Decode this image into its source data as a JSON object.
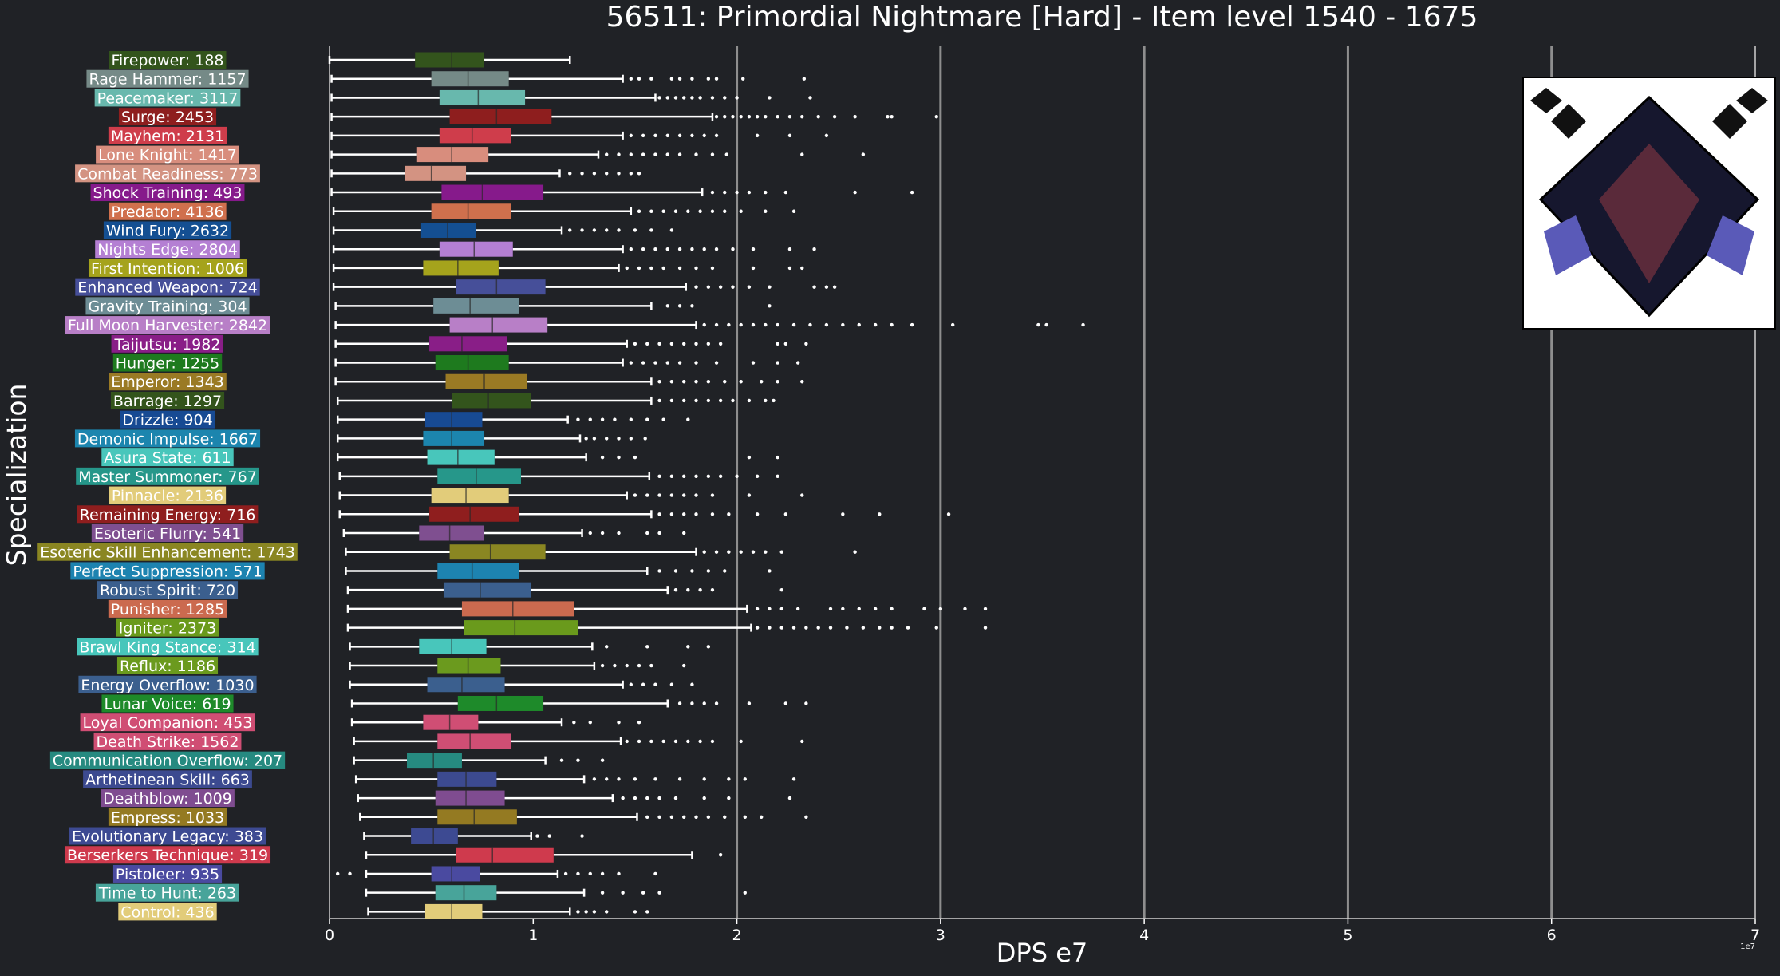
{
  "chart_data": {
    "type": "boxplot",
    "orientation": "horizontal",
    "title": "56511: Primordial Nightmare [Hard] - Item level 1540 - 1675",
    "xlabel": "DPS e7",
    "ylabel": "Specialization",
    "x_offset_label": "1e7",
    "xlim": [
      0,
      7
    ],
    "xticks": [
      0,
      1,
      2,
      3,
      4,
      5,
      6,
      7
    ],
    "grid": "vertical lines at x = 2, 3, 4, 5, 6",
    "colors": {
      "background": "#202226",
      "text": "#ffffff",
      "grid": "#8e8e8e",
      "whisker": "#ffffff"
    },
    "image_inset": {
      "icon": "primordial-nightmare-raid-icon",
      "placement": "top-right"
    },
    "series": [
      {
        "name": "Firepower",
        "label": "Firepower: 188",
        "count": 188,
        "color": "#33541c",
        "whislo": 0.0,
        "q1": 0.42,
        "median": 0.6,
        "q3": 0.76,
        "whishi": 1.18,
        "fliers": []
      },
      {
        "name": "Rage Hammer",
        "label": "Rage Hammer: 1157",
        "count": 1157,
        "color": "#758a87",
        "whislo": 0.01,
        "q1": 0.5,
        "median": 0.68,
        "q3": 0.88,
        "whishi": 1.44,
        "fliers": [
          1.48,
          1.52,
          1.58,
          1.68,
          1.72,
          1.78,
          1.86,
          1.9,
          2.03,
          2.33
        ]
      },
      {
        "name": "Peacemaker",
        "label": "Peacemaker: 3117",
        "count": 3117,
        "color": "#68b8ad",
        "whislo": 0.01,
        "q1": 0.54,
        "median": 0.73,
        "q3": 0.96,
        "whishi": 1.6,
        "fliers": [
          1.62,
          1.66,
          1.7,
          1.74,
          1.78,
          1.82,
          1.88,
          1.94,
          2.0,
          2.16,
          2.36
        ]
      },
      {
        "name": "Surge",
        "label": "Surge: 2453",
        "count": 2453,
        "color": "#8e1e1e",
        "whislo": 0.01,
        "q1": 0.59,
        "median": 0.82,
        "q3": 1.09,
        "whishi": 1.88,
        "fliers": [
          1.9,
          1.94,
          1.98,
          2.02,
          2.06,
          2.1,
          2.14,
          2.2,
          2.26,
          2.32,
          2.4,
          2.48,
          2.58,
          2.74,
          2.76,
          2.98
        ]
      },
      {
        "name": "Mayhem",
        "label": "Mayhem: 2131",
        "count": 2131,
        "color": "#cf3d4b",
        "whislo": 0.01,
        "q1": 0.54,
        "median": 0.7,
        "q3": 0.89,
        "whishi": 1.44,
        "fliers": [
          1.48,
          1.54,
          1.6,
          1.66,
          1.72,
          1.78,
          1.84,
          1.9,
          2.1,
          2.26,
          2.44
        ]
      },
      {
        "name": "Lone Knight",
        "label": "Lone Knight: 1417",
        "count": 1417,
        "color": "#d88d7d",
        "whislo": 0.01,
        "q1": 0.43,
        "median": 0.6,
        "q3": 0.78,
        "whishi": 1.32,
        "fliers": [
          1.36,
          1.42,
          1.48,
          1.54,
          1.6,
          1.66,
          1.72,
          1.8,
          1.88,
          1.95,
          2.32,
          2.62
        ]
      },
      {
        "name": "Combat Readiness",
        "label": "Combat Readiness: 773",
        "count": 773,
        "color": "#d39382",
        "whislo": 0.01,
        "q1": 0.37,
        "median": 0.5,
        "q3": 0.67,
        "whishi": 1.13,
        "fliers": [
          1.18,
          1.24,
          1.3,
          1.36,
          1.42,
          1.48,
          1.52
        ]
      },
      {
        "name": "Shock Training",
        "label": "Shock Training: 493",
        "count": 493,
        "color": "#861a8b",
        "whislo": 0.01,
        "q1": 0.55,
        "median": 0.75,
        "q3": 1.05,
        "whishi": 1.83,
        "fliers": [
          1.88,
          1.94,
          2.0,
          2.06,
          2.14,
          2.24,
          2.58,
          2.86
        ]
      },
      {
        "name": "Predator",
        "label": "Predator: 4136",
        "count": 4136,
        "color": "#d0704d",
        "whislo": 0.02,
        "q1": 0.5,
        "median": 0.68,
        "q3": 0.89,
        "whishi": 1.48,
        "fliers": [
          1.52,
          1.58,
          1.64,
          1.7,
          1.76,
          1.82,
          1.88,
          1.94,
          2.02,
          2.14,
          2.28
        ]
      },
      {
        "name": "Wind Fury",
        "label": "Wind Fury: 2632",
        "count": 2632,
        "color": "#144f92",
        "whislo": 0.02,
        "q1": 0.45,
        "median": 0.58,
        "q3": 0.72,
        "whishi": 1.14,
        "fliers": [
          1.18,
          1.24,
          1.3,
          1.36,
          1.42,
          1.5,
          1.58,
          1.68
        ]
      },
      {
        "name": "Nights Edge",
        "label": "Nights Edge: 2804",
        "count": 2804,
        "color": "#b47fd3",
        "whislo": 0.02,
        "q1": 0.54,
        "median": 0.71,
        "q3": 0.9,
        "whishi": 1.44,
        "fliers": [
          1.48,
          1.54,
          1.6,
          1.66,
          1.72,
          1.78,
          1.84,
          1.9,
          1.98,
          2.08,
          2.26,
          2.38
        ]
      },
      {
        "name": "First Intention",
        "label": "First Intention: 1006",
        "count": 1006,
        "color": "#a5a31c",
        "whislo": 0.02,
        "q1": 0.46,
        "median": 0.63,
        "q3": 0.83,
        "whishi": 1.42,
        "fliers": [
          1.46,
          1.52,
          1.58,
          1.64,
          1.72,
          1.8,
          1.88,
          2.08,
          2.26,
          2.32
        ]
      },
      {
        "name": "Enhanced Weapon",
        "label": "Enhanced Weapon: 724",
        "count": 724,
        "color": "#464f99",
        "whislo": 0.02,
        "q1": 0.62,
        "median": 0.82,
        "q3": 1.06,
        "whishi": 1.75,
        "fliers": [
          1.8,
          1.86,
          1.92,
          1.98,
          2.06,
          2.16,
          2.38,
          2.44,
          2.48
        ]
      },
      {
        "name": "Gravity Training",
        "label": "Gravity Training: 304",
        "count": 304,
        "color": "#6d8d95",
        "whislo": 0.03,
        "q1": 0.51,
        "median": 0.69,
        "q3": 0.93,
        "whishi": 1.58,
        "fliers": [
          1.66,
          1.72,
          1.78,
          2.16
        ]
      },
      {
        "name": "Full Moon Harvester",
        "label": "Full Moon Harvester: 2842",
        "count": 2842,
        "color": "#b87fc7",
        "whislo": 0.03,
        "q1": 0.59,
        "median": 0.8,
        "q3": 1.07,
        "whishi": 1.8,
        "fliers": [
          1.84,
          1.9,
          1.96,
          2.02,
          2.08,
          2.14,
          2.2,
          2.28,
          2.36,
          2.44,
          2.52,
          2.6,
          2.68,
          2.76,
          2.86,
          3.06,
          3.48,
          3.52,
          3.7
        ]
      },
      {
        "name": "Taijutsu",
        "label": "Taijutsu: 1982",
        "count": 1982,
        "color": "#891e87",
        "whislo": 0.03,
        "q1": 0.49,
        "median": 0.65,
        "q3": 0.87,
        "whishi": 1.46,
        "fliers": [
          1.5,
          1.56,
          1.62,
          1.68,
          1.74,
          1.8,
          1.86,
          1.92,
          2.2,
          2.24,
          2.34
        ]
      },
      {
        "name": "Hunger",
        "label": "Hunger: 1255",
        "count": 1255,
        "color": "#1e7a1e",
        "whislo": 0.03,
        "q1": 0.52,
        "median": 0.68,
        "q3": 0.88,
        "whishi": 1.44,
        "fliers": [
          1.48,
          1.54,
          1.6,
          1.66,
          1.72,
          1.8,
          1.9,
          2.08,
          2.2,
          2.3
        ]
      },
      {
        "name": "Emperor",
        "label": "Emperor: 1343",
        "count": 1343,
        "color": "#9a7a24",
        "whislo": 0.03,
        "q1": 0.57,
        "median": 0.76,
        "q3": 0.97,
        "whishi": 1.58,
        "fliers": [
          1.62,
          1.68,
          1.74,
          1.8,
          1.86,
          1.94,
          2.02,
          2.12,
          2.2,
          2.32
        ]
      },
      {
        "name": "Barrage",
        "label": "Barrage: 1297",
        "count": 1297,
        "color": "#33541c",
        "whislo": 0.04,
        "q1": 0.6,
        "median": 0.78,
        "q3": 0.99,
        "whishi": 1.58,
        "fliers": [
          1.62,
          1.68,
          1.74,
          1.8,
          1.86,
          1.92,
          1.98,
          2.06,
          2.14,
          2.18
        ]
      },
      {
        "name": "Drizzle",
        "label": "Drizzle: 904",
        "count": 904,
        "color": "#174a93",
        "whislo": 0.04,
        "q1": 0.47,
        "median": 0.6,
        "q3": 0.75,
        "whishi": 1.17,
        "fliers": [
          1.22,
          1.28,
          1.34,
          1.4,
          1.48,
          1.56,
          1.64,
          1.76
        ]
      },
      {
        "name": "Demonic Impulse",
        "label": "Demonic Impulse: 1667",
        "count": 1667,
        "color": "#1c85ae",
        "whislo": 0.04,
        "q1": 0.46,
        "median": 0.6,
        "q3": 0.76,
        "whishi": 1.23,
        "fliers": [
          1.26,
          1.3,
          1.36,
          1.42,
          1.48,
          1.55
        ]
      },
      {
        "name": "Asura State",
        "label": "Asura State: 611",
        "count": 611,
        "color": "#48c6bb",
        "whislo": 0.04,
        "q1": 0.48,
        "median": 0.63,
        "q3": 0.81,
        "whishi": 1.26,
        "fliers": [
          1.34,
          1.42,
          1.5,
          2.06,
          2.2
        ]
      },
      {
        "name": "Master Summoner",
        "label": "Master Summoner: 767",
        "count": 767,
        "color": "#26978a",
        "whislo": 0.05,
        "q1": 0.53,
        "median": 0.72,
        "q3": 0.94,
        "whishi": 1.57,
        "fliers": [
          1.62,
          1.68,
          1.74,
          1.8,
          1.86,
          1.92,
          2.0,
          2.1,
          2.2
        ]
      },
      {
        "name": "Pinnacle",
        "label": "Pinnacle: 2136",
        "count": 2136,
        "color": "#e2cc7a",
        "whislo": 0.05,
        "q1": 0.5,
        "median": 0.67,
        "q3": 0.88,
        "whishi": 1.46,
        "fliers": [
          1.5,
          1.56,
          1.62,
          1.68,
          1.74,
          1.8,
          1.88,
          2.06,
          2.32
        ]
      },
      {
        "name": "Remaining Energy",
        "label": "Remaining Energy: 716",
        "count": 716,
        "color": "#8f1e1e",
        "whislo": 0.05,
        "q1": 0.49,
        "median": 0.69,
        "q3": 0.93,
        "whishi": 1.58,
        "fliers": [
          1.62,
          1.68,
          1.74,
          1.8,
          1.88,
          1.96,
          2.1,
          2.24,
          2.52,
          2.7,
          3.04
        ]
      },
      {
        "name": "Esoteric Flurry",
        "label": "Esoteric Flurry: 541",
        "count": 541,
        "color": "#7f4f90",
        "whislo": 0.07,
        "q1": 0.44,
        "median": 0.59,
        "q3": 0.76,
        "whishi": 1.24,
        "fliers": [
          1.28,
          1.34,
          1.42,
          1.56,
          1.62,
          1.74
        ]
      },
      {
        "name": "Esoteric Skill Enhancement",
        "label": "Esoteric Skill Enhancement: 1743",
        "count": 1743,
        "color": "#8a8622",
        "whislo": 0.08,
        "q1": 0.59,
        "median": 0.79,
        "q3": 1.06,
        "whishi": 1.8,
        "fliers": [
          1.84,
          1.9,
          1.96,
          2.02,
          2.08,
          2.14,
          2.22,
          2.58
        ]
      },
      {
        "name": "Perfect Suppression",
        "label": "Perfect Suppression: 571",
        "count": 571,
        "color": "#1d83b0",
        "whislo": 0.08,
        "q1": 0.53,
        "median": 0.7,
        "q3": 0.93,
        "whishi": 1.56,
        "fliers": [
          1.62,
          1.7,
          1.78,
          1.86,
          1.94,
          2.16
        ]
      },
      {
        "name": "Robust Spirit",
        "label": "Robust Spirit: 720",
        "count": 720,
        "color": "#3b5f8e",
        "whislo": 0.09,
        "q1": 0.56,
        "median": 0.74,
        "q3": 0.99,
        "whishi": 1.66,
        "fliers": [
          1.7,
          1.76,
          1.82,
          1.88,
          2.22
        ]
      },
      {
        "name": "Punisher",
        "label": "Punisher: 1285",
        "count": 1285,
        "color": "#cb6a4f",
        "whislo": 0.09,
        "q1": 0.65,
        "median": 0.9,
        "q3": 1.2,
        "whishi": 2.05,
        "fliers": [
          2.1,
          2.16,
          2.22,
          2.3,
          2.46,
          2.52,
          2.6,
          2.68,
          2.76,
          2.92,
          3.0,
          3.12,
          3.22
        ]
      },
      {
        "name": "Igniter",
        "label": "Igniter: 2373",
        "count": 2373,
        "color": "#6a9a1c",
        "whislo": 0.09,
        "q1": 0.66,
        "median": 0.91,
        "q3": 1.22,
        "whishi": 2.07,
        "fliers": [
          2.1,
          2.16,
          2.22,
          2.28,
          2.34,
          2.4,
          2.46,
          2.54,
          2.62,
          2.7,
          2.76,
          2.84,
          2.98,
          3.22
        ]
      },
      {
        "name": "Brawl King Stance",
        "label": "Brawl King Stance: 314",
        "count": 314,
        "color": "#48c6bb",
        "whislo": 0.1,
        "q1": 0.44,
        "median": 0.6,
        "q3": 0.77,
        "whishi": 1.29,
        "fliers": [
          1.36,
          1.56,
          1.76,
          1.86
        ]
      },
      {
        "name": "Reflux",
        "label": "Reflux: 1186",
        "count": 1186,
        "color": "#6b9a1e",
        "whislo": 0.1,
        "q1": 0.53,
        "median": 0.68,
        "q3": 0.84,
        "whishi": 1.3,
        "fliers": [
          1.34,
          1.4,
          1.46,
          1.52,
          1.58,
          1.74
        ]
      },
      {
        "name": "Energy Overflow",
        "label": "Energy Overflow: 1030",
        "count": 1030,
        "color": "#3b5f8e",
        "whislo": 0.1,
        "q1": 0.48,
        "median": 0.65,
        "q3": 0.86,
        "whishi": 1.44,
        "fliers": [
          1.48,
          1.54,
          1.6,
          1.68,
          1.78
        ]
      },
      {
        "name": "Lunar Voice",
        "label": "Lunar Voice: 619",
        "count": 619,
        "color": "#1e8a2a",
        "whislo": 0.11,
        "q1": 0.63,
        "median": 0.82,
        "q3": 1.05,
        "whishi": 1.66,
        "fliers": [
          1.72,
          1.78,
          1.84,
          1.9,
          2.06,
          2.24,
          2.34
        ]
      },
      {
        "name": "Loyal Companion",
        "label": "Loyal Companion: 453",
        "count": 453,
        "color": "#d04e74",
        "whislo": 0.11,
        "q1": 0.46,
        "median": 0.59,
        "q3": 0.73,
        "whishi": 1.14,
        "fliers": [
          1.2,
          1.28,
          1.42,
          1.52
        ]
      },
      {
        "name": "Death Strike",
        "label": "Death Strike: 1562",
        "count": 1562,
        "color": "#d04e74",
        "whislo": 0.12,
        "q1": 0.53,
        "median": 0.69,
        "q3": 0.89,
        "whishi": 1.43,
        "fliers": [
          1.46,
          1.52,
          1.58,
          1.64,
          1.7,
          1.76,
          1.82,
          1.88,
          2.02,
          2.32
        ]
      },
      {
        "name": "Communication Overflow",
        "label": "Communication Overflow: 207",
        "count": 207,
        "color": "#268a80",
        "whislo": 0.12,
        "q1": 0.38,
        "median": 0.51,
        "q3": 0.65,
        "whishi": 1.06,
        "fliers": [
          1.14,
          1.22,
          1.34
        ]
      },
      {
        "name": "Arthetinean Skill",
        "label": "Arthetinean Skill: 663",
        "count": 663,
        "color": "#3c4a90",
        "whislo": 0.13,
        "q1": 0.53,
        "median": 0.67,
        "q3": 0.82,
        "whishi": 1.25,
        "fliers": [
          1.3,
          1.36,
          1.42,
          1.5,
          1.6,
          1.72,
          1.84,
          1.96,
          2.04,
          2.28
        ]
      },
      {
        "name": "Deathblow",
        "label": "Deathblow: 1009",
        "count": 1009,
        "color": "#7f4c90",
        "whislo": 0.14,
        "q1": 0.52,
        "median": 0.67,
        "q3": 0.86,
        "whishi": 1.39,
        "fliers": [
          1.44,
          1.5,
          1.56,
          1.62,
          1.7,
          1.84,
          1.96,
          2.26
        ]
      },
      {
        "name": "Empress",
        "label": "Empress: 1033",
        "count": 1033,
        "color": "#947a22",
        "whislo": 0.15,
        "q1": 0.53,
        "median": 0.71,
        "q3": 0.92,
        "whishi": 1.51,
        "fliers": [
          1.56,
          1.62,
          1.68,
          1.74,
          1.8,
          1.86,
          1.94,
          2.04,
          2.12,
          2.34
        ]
      },
      {
        "name": "Evolutionary Legacy",
        "label": "Evolutionary Legacy: 383",
        "count": 383,
        "color": "#3d4a92",
        "whislo": 0.17,
        "q1": 0.4,
        "median": 0.51,
        "q3": 0.63,
        "whishi": 0.99,
        "fliers": [
          1.02,
          1.08,
          1.24
        ]
      },
      {
        "name": "Berserkers Technique",
        "label": "Berserkers Technique: 319",
        "count": 319,
        "color": "#cf3a4d",
        "whislo": 0.18,
        "q1": 0.62,
        "median": 0.8,
        "q3": 1.1,
        "whishi": 1.78,
        "fliers": [
          1.92
        ]
      },
      {
        "name": "Pistoleer",
        "label": "Pistoleer: 935",
        "count": 935,
        "color": "#4a4aa0",
        "whislo": 0.18,
        "q1": 0.5,
        "median": 0.6,
        "q3": 0.74,
        "whishi": 1.12,
        "fliers": [
          0.04,
          0.1,
          1.16,
          1.22,
          1.28,
          1.34,
          1.42,
          1.6
        ]
      },
      {
        "name": "Time to Hunt",
        "label": "Time to Hunt: 263",
        "count": 263,
        "color": "#48a49a",
        "whislo": 0.18,
        "q1": 0.52,
        "median": 0.66,
        "q3": 0.82,
        "whishi": 1.25,
        "fliers": [
          1.34,
          1.44,
          1.54,
          1.62,
          2.04
        ]
      },
      {
        "name": "Control",
        "label": "Control: 436",
        "count": 436,
        "color": "#e2cc7a",
        "whislo": 0.19,
        "q1": 0.47,
        "median": 0.6,
        "q3": 0.75,
        "whishi": 1.18,
        "fliers": [
          1.22,
          1.26,
          1.3,
          1.36,
          1.5,
          1.56
        ]
      }
    ]
  }
}
